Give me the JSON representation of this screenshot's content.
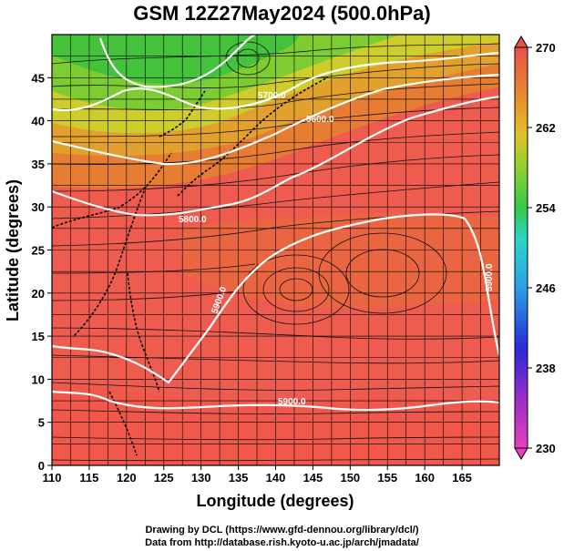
{
  "title": "GSM 12Z27May2024 (500.0hPa)",
  "credits": {
    "line1": "Drawing by DCL (https://www.gfd-dennou.org/library/dcl/)",
    "line2": "Data from http://database.rish.kyoto-u.ac.jp/arch/jmadata/"
  },
  "axes": {
    "x": {
      "label": "Longitude (degrees)",
      "range": [
        110,
        170
      ],
      "ticks": [
        "110",
        "115",
        "120",
        "125",
        "130",
        "135",
        "140",
        "145",
        "150",
        "155",
        "160",
        "165"
      ]
    },
    "y": {
      "label": "Latitude  (degrees)",
      "range": [
        0,
        50
      ],
      "ticks": [
        "0",
        "5",
        "10",
        "15",
        "20",
        "25",
        "30",
        "35",
        "40",
        "45"
      ]
    }
  },
  "colorbar": {
    "range": [
      230,
      270
    ],
    "ticks": [
      "230",
      "238",
      "246",
      "254",
      "262",
      "270"
    ]
  },
  "contours": [
    {
      "label": "5900.0"
    },
    {
      "label": "5900.0"
    },
    {
      "label": "5900.0"
    },
    {
      "label": "5900.0"
    },
    {
      "label": "5800.0"
    },
    {
      "label": "5700.0"
    },
    {
      "label": "5600.0"
    }
  ],
  "colors": {
    "warm": "#ee5b4f",
    "orange": "#e88a2a",
    "yellow": "#d9c12c",
    "green": "#55c93a",
    "contour": "#ffffff"
  }
}
